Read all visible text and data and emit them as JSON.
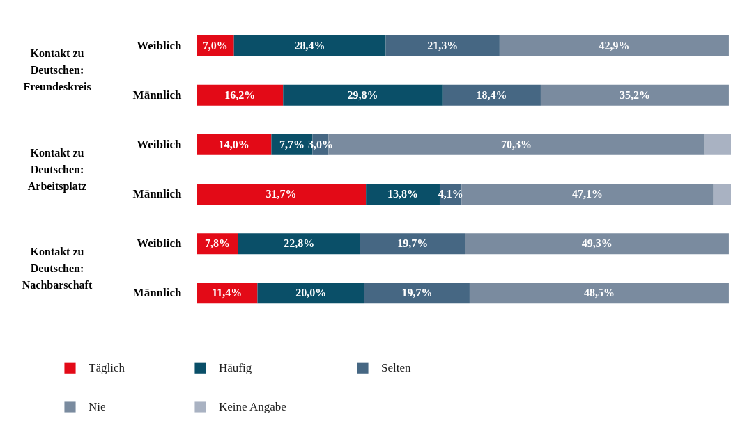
{
  "chart_data": {
    "type": "bar",
    "orientation": "horizontal",
    "stacked": true,
    "legend": "bottom",
    "categories": [
      "Weiblich",
      "Männlich",
      "Weiblich",
      "Männlich",
      "Weiblich",
      "Männlich"
    ],
    "annotations": [
      "Kontakt zu Deutschen: Freundeskreis",
      "Kontakt zu Deutschen: Arbeitsplatz",
      "Kontakt zu Deutschen: Nachbarschaft"
    ],
    "series": [
      {
        "name": "Täglich",
        "color": "#e30a17",
        "values": [
          7.0,
          16.2,
          14.0,
          31.7,
          7.8,
          11.4
        ],
        "value_labels": [
          "7,0%",
          "16,2%",
          "14,0%",
          "31,7%",
          "7,8%",
          "11,4%"
        ]
      },
      {
        "name": "Häufig",
        "color": "#0a4f68",
        "values": [
          28.4,
          29.8,
          7.7,
          13.8,
          22.8,
          20.0
        ],
        "value_labels": [
          "28,4%",
          "29,8%",
          "7,7%",
          "13,8%",
          "22,8%",
          "20,0%"
        ]
      },
      {
        "name": "Selten",
        "color": "#466783",
        "values": [
          21.3,
          18.4,
          3.0,
          4.1,
          19.7,
          19.7
        ],
        "value_labels": [
          "21,3%",
          "18,4%",
          "3,0%",
          "4,1%",
          "19,7%",
          "19,7%"
        ]
      },
      {
        "name": "Nie",
        "color": "#7a8b9f",
        "values": [
          42.9,
          35.2,
          70.3,
          47.1,
          49.3,
          48.5
        ],
        "value_labels": [
          "42,9%",
          "35,2%",
          "70,3%",
          "47,1%",
          "49,3%",
          "48,5%"
        ]
      },
      {
        "name": "Keine Angabe",
        "color": "#a9b2c2",
        "values": [
          null,
          null,
          5.0,
          3.3,
          null,
          null
        ],
        "value_labels": [
          null,
          null,
          null,
          null,
          null,
          null
        ]
      }
    ]
  }
}
